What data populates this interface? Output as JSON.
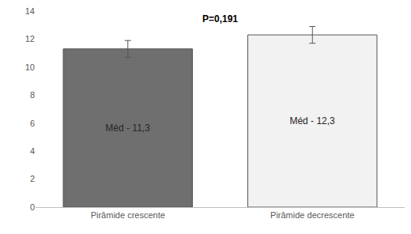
{
  "chart_data": {
    "type": "bar",
    "categories": [
      "Pirâmide crescente",
      "Pirâmide decrescente"
    ],
    "values": [
      11.3,
      12.3
    ],
    "value_labels": [
      "Méd - 11,3",
      "Méd - 12,3"
    ],
    "errors": [
      0.6,
      0.6
    ],
    "colors": [
      "#6f6f6f",
      "#f2f2f2"
    ],
    "ylim": [
      0,
      14
    ],
    "yticks": [
      0,
      2,
      4,
      6,
      8,
      10,
      12,
      14
    ],
    "grid": false,
    "data_labels": true,
    "annotations": [
      {
        "text": "P=0,191"
      }
    ]
  }
}
